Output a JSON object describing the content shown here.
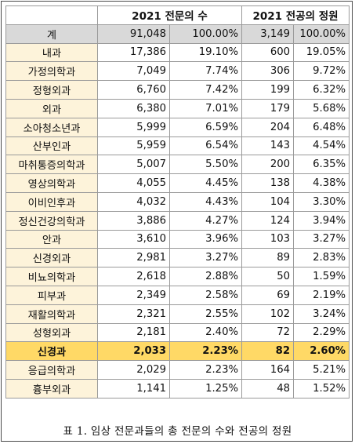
{
  "header": {
    "blank": "",
    "specialists_title": "2021 전문의 수",
    "residents_title": "2021 전공의 정원"
  },
  "total": {
    "name": "계",
    "specialists": "91,048",
    "specialists_pct": "100.00%",
    "quota": "3,149",
    "quota_pct": "100.00%"
  },
  "rows": [
    {
      "name": "내과",
      "specialists": "17,386",
      "specialists_pct": "19.10%",
      "quota": "600",
      "quota_pct": "19.05%"
    },
    {
      "name": "가정의학과",
      "specialists": "7,049",
      "specialists_pct": "7.74%",
      "quota": "306",
      "quota_pct": "9.72%"
    },
    {
      "name": "정형외과",
      "specialists": "6,760",
      "specialists_pct": "7.42%",
      "quota": "199",
      "quota_pct": "6.32%"
    },
    {
      "name": "외과",
      "specialists": "6,380",
      "specialists_pct": "7.01%",
      "quota": "179",
      "quota_pct": "5.68%"
    },
    {
      "name": "소아청소년과",
      "specialists": "5,999",
      "specialists_pct": "6.59%",
      "quota": "204",
      "quota_pct": "6.48%"
    },
    {
      "name": "산부인과",
      "specialists": "5,959",
      "specialists_pct": "6.54%",
      "quota": "143",
      "quota_pct": "4.54%"
    },
    {
      "name": "마취통증의학과",
      "specialists": "5,007",
      "specialists_pct": "5.50%",
      "quota": "200",
      "quota_pct": "6.35%"
    },
    {
      "name": "영상의학과",
      "specialists": "4,055",
      "specialists_pct": "4.45%",
      "quota": "138",
      "quota_pct": "4.38%"
    },
    {
      "name": "이비인후과",
      "specialists": "4,032",
      "specialists_pct": "4.43%",
      "quota": "104",
      "quota_pct": "3.30%"
    },
    {
      "name": "정신건강의학과",
      "specialists": "3,886",
      "specialists_pct": "4.27%",
      "quota": "124",
      "quota_pct": "3.94%"
    },
    {
      "name": "안과",
      "specialists": "3,610",
      "specialists_pct": "3.96%",
      "quota": "103",
      "quota_pct": "3.27%"
    },
    {
      "name": "신경외과",
      "specialists": "2,981",
      "specialists_pct": "3.27%",
      "quota": "89",
      "quota_pct": "2.83%"
    },
    {
      "name": "비뇨의학과",
      "specialists": "2,618",
      "specialists_pct": "2.88%",
      "quota": "50",
      "quota_pct": "1.59%"
    },
    {
      "name": "피부과",
      "specialists": "2,349",
      "specialists_pct": "2.58%",
      "quota": "69",
      "quota_pct": "2.19%"
    },
    {
      "name": "재활의학과",
      "specialists": "2,321",
      "specialists_pct": "2.55%",
      "quota": "102",
      "quota_pct": "3.24%"
    },
    {
      "name": "성형외과",
      "specialists": "2,181",
      "specialists_pct": "2.40%",
      "quota": "72",
      "quota_pct": "2.29%"
    },
    {
      "name": "신경과",
      "specialists": "2,033",
      "specialists_pct": "2.23%",
      "quota": "82",
      "quota_pct": "2.60%",
      "highlight": true
    },
    {
      "name": "응급의학과",
      "specialists": "2,029",
      "specialists_pct": "2.23%",
      "quota": "164",
      "quota_pct": "5.21%"
    },
    {
      "name": "흉부외과",
      "specialists": "1,141",
      "specialists_pct": "1.25%",
      "quota": "48",
      "quota_pct": "1.52%"
    }
  ],
  "caption": "표 1. 임상 전문과들의 총 전문의 수와 전공의 정원",
  "colors": {
    "name_cell_bg": "#fdf3da",
    "total_row_bg": "#d9d9d9",
    "highlight_row_bg": "#ffd966",
    "grid_line": "#9a9a9a"
  }
}
